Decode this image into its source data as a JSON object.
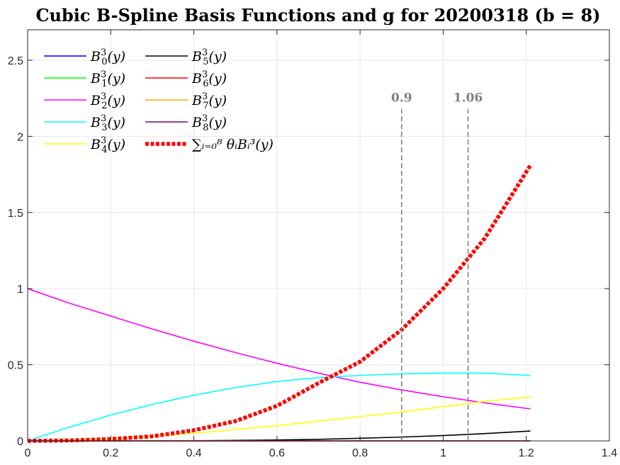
{
  "chart_data": {
    "type": "line",
    "title": "Cubic B-Spline Basis Functions and g for 20200318 (b = 8)",
    "xlabel": "",
    "ylabel": "",
    "xlim": [
      0,
      1.4
    ],
    "ylim": [
      0,
      2.7
    ],
    "xticks": [
      "0",
      "0.2",
      "0.4",
      "0.6",
      "0.8",
      "1",
      "1.2",
      "1.4"
    ],
    "yticks": [
      "0",
      "0.5",
      "1",
      "1.5",
      "2",
      "2.5"
    ],
    "grid": true,
    "legend_position": "top-left",
    "x": [
      0,
      0.1,
      0.2,
      0.3,
      0.4,
      0.5,
      0.6,
      0.7,
      0.8,
      0.9,
      1.0,
      1.1,
      1.21
    ],
    "series": [
      {
        "name": "B0",
        "color": "#0000ff",
        "style": "solid",
        "values": [
          0,
          0,
          0,
          0,
          0,
          0,
          0,
          0,
          0,
          0,
          0,
          0,
          0
        ]
      },
      {
        "name": "B1",
        "color": "#00ff00",
        "style": "solid",
        "values": [
          0,
          0,
          0,
          0,
          0,
          0,
          0,
          0,
          0,
          0,
          0,
          0,
          0
        ]
      },
      {
        "name": "B2",
        "color": "#ff00ff",
        "style": "solid",
        "values": [
          1.0,
          0.905,
          0.82,
          0.735,
          0.655,
          0.58,
          0.51,
          0.445,
          0.385,
          0.335,
          0.29,
          0.25,
          0.21
        ]
      },
      {
        "name": "B3",
        "color": "#00ffff",
        "style": "solid",
        "values": [
          0.0,
          0.09,
          0.17,
          0.24,
          0.3,
          0.35,
          0.39,
          0.415,
          0.43,
          0.44,
          0.445,
          0.445,
          0.43
        ]
      },
      {
        "name": "B4",
        "color": "#ffff00",
        "style": "solid",
        "values": [
          0.0,
          0.005,
          0.015,
          0.03,
          0.05,
          0.075,
          0.1,
          0.13,
          0.16,
          0.19,
          0.225,
          0.26,
          0.29
        ]
      },
      {
        "name": "B5",
        "color": "#000000",
        "style": "solid",
        "values": [
          0,
          0,
          0,
          0,
          0.001,
          0.003,
          0.006,
          0.01,
          0.017,
          0.025,
          0.035,
          0.048,
          0.065
        ]
      },
      {
        "name": "B6",
        "color": "#ff0000",
        "style": "solid",
        "values": [
          0,
          0,
          0,
          0,
          0,
          0,
          0,
          0,
          0,
          0,
          0,
          0,
          0
        ]
      },
      {
        "name": "B7",
        "color": "#ffa500",
        "style": "solid",
        "values": [
          0,
          0,
          0,
          0,
          0,
          0,
          0,
          0,
          0,
          0,
          0,
          0,
          0
        ]
      },
      {
        "name": "B8",
        "color": "#800080",
        "style": "solid",
        "values": [
          0,
          0,
          0,
          0,
          0,
          0,
          0,
          0,
          0,
          0,
          0,
          0,
          0
        ]
      },
      {
        "name": "g",
        "color": "#ff0000",
        "style": "dotted",
        "values": [
          0.0,
          0.003,
          0.012,
          0.03,
          0.07,
          0.13,
          0.23,
          0.38,
          0.52,
          0.73,
          1.0,
          1.33,
          1.81
        ]
      }
    ],
    "vlines": [
      {
        "x": 0.9,
        "label": "0.9",
        "ymax": 2.18,
        "color": "#808080"
      },
      {
        "x": 1.06,
        "label": "1.06",
        "ymax": 2.18,
        "color": "#808080"
      }
    ],
    "legend": [
      {
        "series": "B0",
        "label_base": "B",
        "sub": "0",
        "sup": "3",
        "arg": "(y)"
      },
      {
        "series": "B1",
        "label_base": "B",
        "sub": "1",
        "sup": "3",
        "arg": "(y)"
      },
      {
        "series": "B2",
        "label_base": "B",
        "sub": "2",
        "sup": "3",
        "arg": "(y)"
      },
      {
        "series": "B3",
        "label_base": "B",
        "sub": "3",
        "sup": "3",
        "arg": "(y)"
      },
      {
        "series": "B4",
        "label_base": "B",
        "sub": "4",
        "sup": "3",
        "arg": "(y)"
      },
      {
        "series": "B5",
        "label_base": "B",
        "sub": "5",
        "sup": "3",
        "arg": "(y)"
      },
      {
        "series": "B6",
        "label_base": "B",
        "sub": "6",
        "sup": "3",
        "arg": "(y)"
      },
      {
        "series": "B7",
        "label_base": "B",
        "sub": "7",
        "sup": "3",
        "arg": "(y)"
      },
      {
        "series": "B8",
        "label_base": "B",
        "sub": "8",
        "sup": "3",
        "arg": "(y)"
      },
      {
        "series": "g",
        "label_text": "∑ᵢ₌₀⁸ θᵢBᵢ³(y)"
      }
    ]
  }
}
